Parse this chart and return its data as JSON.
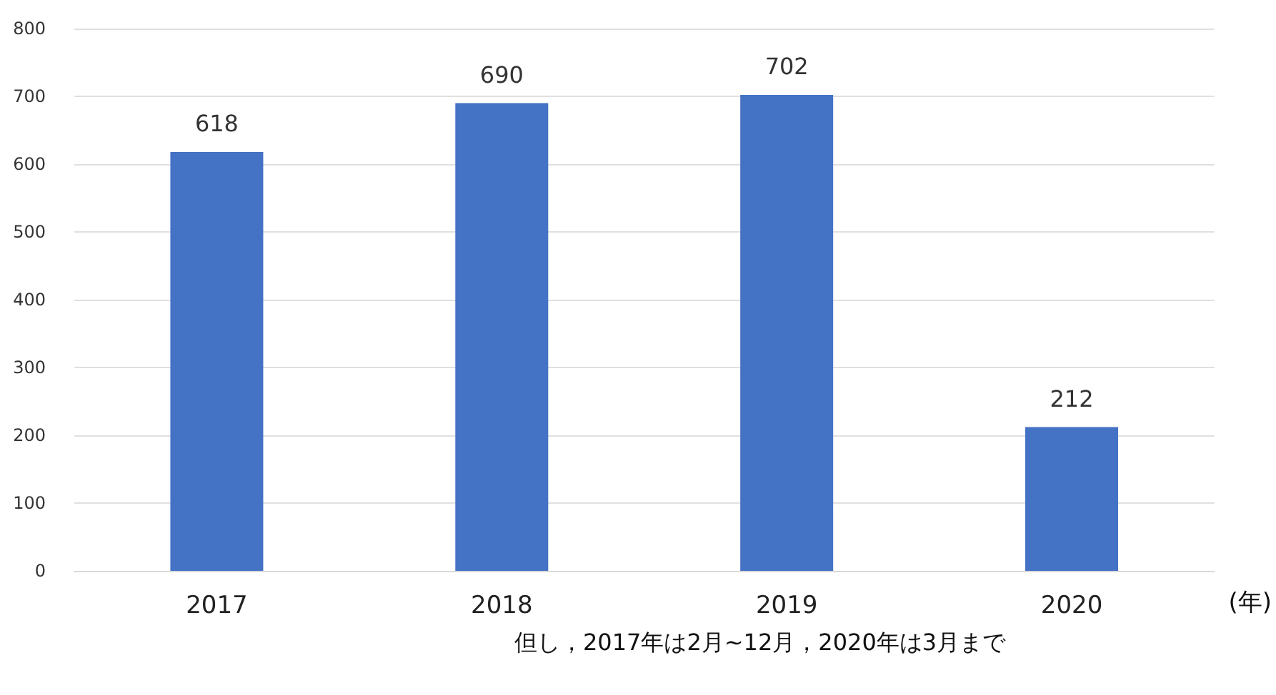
{
  "chart_data": {
    "type": "bar",
    "categories": [
      "2017",
      "2018",
      "2019",
      "2020"
    ],
    "values": [
      618,
      690,
      702,
      212
    ],
    "color": "#4472c4",
    "ylim": [
      0,
      800
    ],
    "yticks": [
      0,
      100,
      200,
      300,
      400,
      500,
      600,
      700,
      800
    ],
    "grid": "y",
    "data_labels": true,
    "xlabel": "(年)",
    "annotations": [
      "但し，2017年は2月~12月，2020年は3月まで"
    ]
  }
}
